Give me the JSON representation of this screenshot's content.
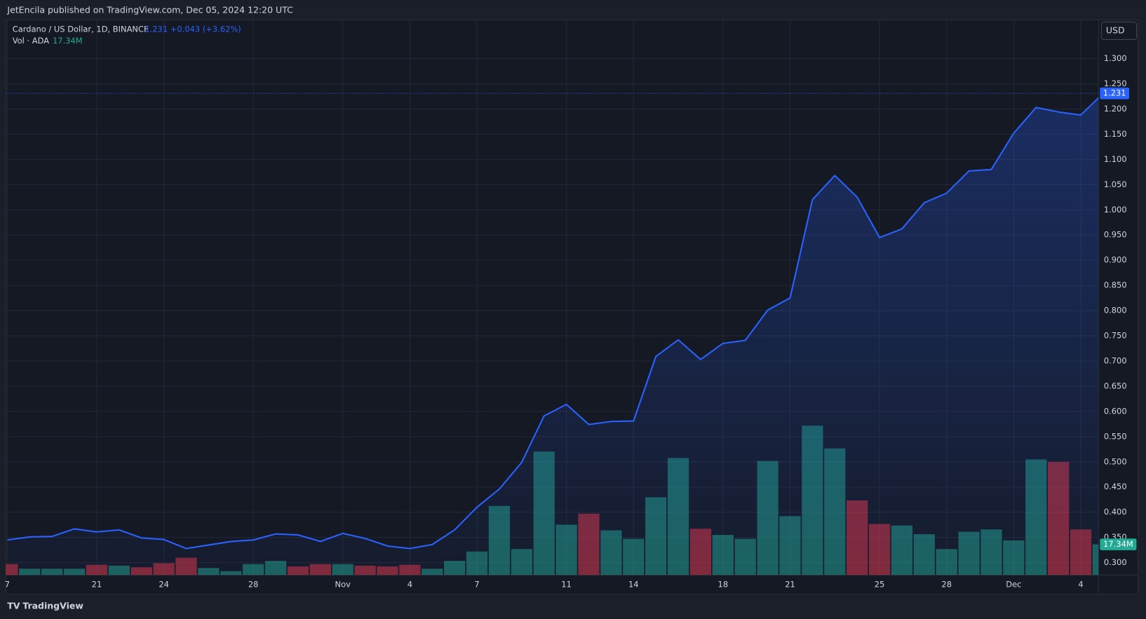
{
  "header": "JetEncila published on TradingView.com, Dec 05, 2024 12:20 UTC",
  "footer": "TradingView",
  "chart_data": {
    "type": "area",
    "currency": "USD",
    "change": "+0.043 (+3.62%)",
    "categories": [
      "7",
      null,
      null,
      null,
      "21",
      null,
      null,
      "24",
      null,
      null,
      null,
      "28",
      null,
      null,
      null,
      "Nov",
      null,
      null,
      "4",
      null,
      null,
      "7",
      null,
      null,
      null,
      "11",
      null,
      null,
      "14",
      null,
      null,
      null,
      "18",
      null,
      null,
      "21",
      null,
      null,
      null,
      "25",
      null,
      null,
      "28",
      null,
      null,
      "Dec",
      null,
      null,
      "4",
      null
    ],
    "series": [
      {
        "name": "Cardano / US Dollar, 1D, BINANCE",
        "color": "#2962ff",
        "values": [
          0.345,
          0.351,
          0.352,
          0.367,
          0.361,
          0.365,
          0.349,
          0.346,
          0.328,
          0.335,
          0.342,
          0.345,
          0.357,
          0.355,
          0.342,
          0.358,
          0.348,
          0.333,
          0.328,
          0.336,
          0.365,
          0.41,
          0.446,
          0.499,
          0.591,
          0.614,
          0.574,
          0.58,
          0.581,
          0.709,
          0.742,
          0.703,
          0.735,
          0.741,
          0.801,
          0.825,
          1.02,
          1.068,
          1.025,
          0.945,
          0.962,
          1.014,
          1.033,
          1.077,
          1.08,
          1.152,
          1.203,
          1.194,
          1.188,
          1.231
        ]
      },
      {
        "name": "Vol · ADA",
        "axis": "y2",
        "color": "#22ab94",
        "values": [
          6.2,
          3.6,
          3.6,
          3.6,
          5.8,
          5.3,
          4.4,
          6.7,
          9.8,
          4.0,
          2.2,
          6.2,
          8.0,
          4.9,
          6.2,
          6.2,
          5.3,
          4.9,
          5.8,
          3.6,
          8.0,
          13.3,
          39.1,
          14.7,
          69.8,
          28.5,
          34.7,
          25.3,
          20.5,
          44.0,
          66.2,
          26.2,
          22.7,
          20.5,
          64.5,
          33.3,
          84.5,
          71.6,
          42.2,
          28.9,
          28.0,
          23.1,
          14.7,
          24.5,
          25.8,
          19.6,
          65.4,
          64.0,
          25.8,
          17.34
        ],
        "value_labels": [
          null,
          null,
          null,
          null,
          null,
          null,
          null,
          null,
          null,
          null,
          null,
          null,
          null,
          null,
          null,
          null,
          null,
          null,
          null,
          null,
          null,
          null,
          null,
          null,
          null,
          null,
          null,
          null,
          null,
          null,
          null,
          null,
          null,
          null,
          null,
          null,
          null,
          null,
          null,
          null,
          null,
          null,
          null,
          null,
          null,
          null,
          null,
          null,
          null,
          "17.34M"
        ],
        "colors": [
          "#f23645",
          "#22ab94",
          "#22ab94",
          "#22ab94",
          "#f23645",
          "#22ab94",
          "#f23645",
          "#f23645",
          "#f23645",
          "#22ab94",
          "#22ab94",
          "#22ab94",
          "#22ab94",
          "#f23645",
          "#f23645",
          "#22ab94",
          "#f23645",
          "#f23645",
          "#f23645",
          "#22ab94",
          "#22ab94",
          "#22ab94",
          "#22ab94",
          "#22ab94",
          "#22ab94",
          "#22ab94",
          "#f23645",
          "#22ab94",
          "#22ab94",
          "#22ab94",
          "#22ab94",
          "#f23645",
          "#22ab94",
          "#22ab94",
          "#22ab94",
          "#22ab94",
          "#22ab94",
          "#22ab94",
          "#f23645",
          "#f23645",
          "#22ab94",
          "#22ab94",
          "#22ab94",
          "#22ab94",
          "#22ab94",
          "#22ab94",
          "#22ab94",
          "#f23645",
          "#f23645",
          "#22ab94"
        ]
      }
    ],
    "ylim": [
      0.2754,
      1.3768
    ],
    "yticks": [
      {
        "value": 0.3,
        "label": "0.300"
      },
      {
        "value": 0.35,
        "label": "0.350"
      },
      {
        "value": 0.4,
        "label": "0.400"
      },
      {
        "value": 0.45,
        "label": "0.450"
      },
      {
        "value": 0.5,
        "label": "0.500"
      },
      {
        "value": 0.55,
        "label": "0.550"
      },
      {
        "value": 0.6,
        "label": "0.600"
      },
      {
        "value": 0.65,
        "label": "0.650"
      },
      {
        "value": 0.7,
        "label": "0.700"
      },
      {
        "value": 0.75,
        "label": "0.750"
      },
      {
        "value": 0.8,
        "label": "0.800"
      },
      {
        "value": 0.85,
        "label": "0.850"
      },
      {
        "value": 0.9,
        "label": "0.900"
      },
      {
        "value": 0.95,
        "label": "0.950"
      },
      {
        "value": 1.0,
        "label": "1.000"
      },
      {
        "value": 1.05,
        "label": "1.050"
      },
      {
        "value": 1.1,
        "label": "1.100"
      },
      {
        "value": 1.15,
        "label": "1.150"
      },
      {
        "value": 1.2,
        "label": "1.200"
      },
      {
        "value": 1.25,
        "label": "1.250"
      },
      {
        "value": 1.3,
        "label": "1.300"
      }
    ],
    "y2lim": [
      0,
      314
    ],
    "grid": true
  }
}
